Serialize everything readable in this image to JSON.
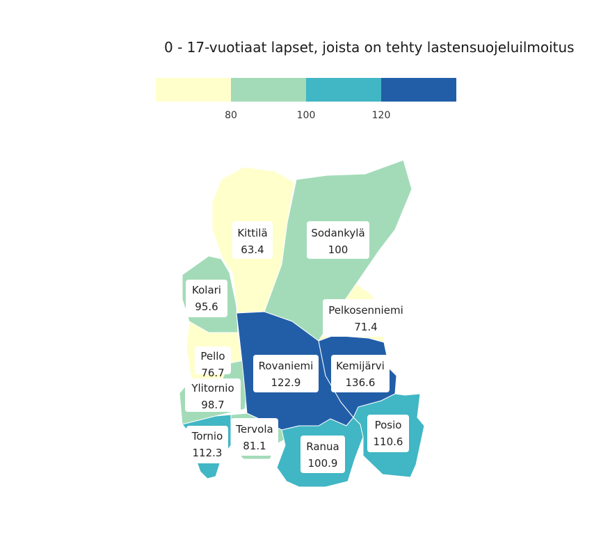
{
  "title": "0 - 17-vuotiaat lapset, joista on tehty lastensuojeluilmoitus",
  "legend": {
    "ticks": [
      "80",
      "100",
      "120"
    ],
    "colors": [
      "#ffffcc",
      "#a3dbb8",
      "#41b6c4",
      "#225ea8"
    ]
  },
  "municipalities": [
    {
      "name": "Kittilä",
      "value": "63.4",
      "color": "#ffffcc"
    },
    {
      "name": "Sodankylä",
      "value": "100",
      "color": "#a3dbb8"
    },
    {
      "name": "Kolari",
      "value": "95.6",
      "color": "#a3dbb8"
    },
    {
      "name": "Pelkosenniemi",
      "value": "71.4",
      "color": "#ffffcc"
    },
    {
      "name": "Pello",
      "value": "76.7",
      "color": "#ffffcc"
    },
    {
      "name": "Rovaniemi",
      "value": "122.9",
      "color": "#225ea8"
    },
    {
      "name": "Kemijärvi",
      "value": "136.6",
      "color": "#225ea8"
    },
    {
      "name": "Ylitornio",
      "value": "98.7",
      "color": "#a3dbb8"
    },
    {
      "name": "Tervola",
      "value": "81.1",
      "color": "#a3dbb8"
    },
    {
      "name": "Tornio",
      "value": "112.3",
      "color": "#41b6c4"
    },
    {
      "name": "Posio",
      "value": "110.6",
      "color": "#41b6c4"
    },
    {
      "name": "Ranua",
      "value": "100.9",
      "color": "#41b6c4"
    }
  ]
}
